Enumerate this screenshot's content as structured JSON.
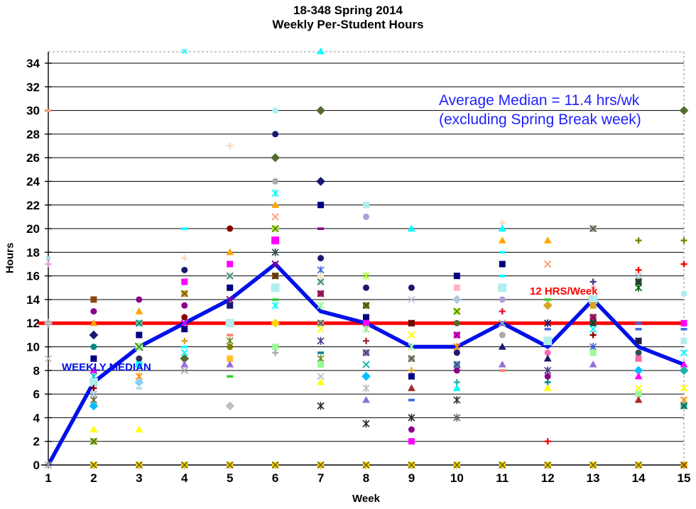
{
  "chart_data": {
    "type": "scatter",
    "title_line1": "18-348 Spring 2014",
    "title_line2": "Weekly Per-Student Hours",
    "xlabel": "Week",
    "ylabel": "Hours",
    "x_ticks": [
      1,
      2,
      3,
      4,
      5,
      6,
      7,
      8,
      9,
      10,
      11,
      12,
      13,
      14,
      15
    ],
    "y_ticks": [
      0,
      2,
      4,
      6,
      8,
      10,
      12,
      14,
      16,
      18,
      20,
      22,
      24,
      26,
      28,
      30,
      32,
      34
    ],
    "ylim": [
      0,
      35
    ],
    "grid": "horizontal-every-2-hours",
    "legend_position": "none",
    "annotations": {
      "average_line1": "Average Median = 11.4 hrs/wk",
      "average_line2": "(excluding  Spring Break week)",
      "annotation_color": "#1F1FFF"
    },
    "reference_line": {
      "label": "12 HRS/Week",
      "value": 12,
      "color": "#FF0000"
    },
    "median_series": {
      "name": "WEEKLY MEDIAN",
      "color": "#0010E8",
      "x": [
        1,
        2,
        3,
        4,
        5,
        6,
        7,
        8,
        9,
        10,
        11,
        12,
        13,
        14,
        15
      ],
      "y": [
        0,
        7,
        10,
        12,
        14,
        17,
        13,
        12,
        10,
        10,
        12,
        10,
        14,
        10,
        8.5
      ]
    },
    "student_points_note": "per-week per-student hours; each point [hours, color, marker, optional size]; markers: sq=square ci=circle di=diamond tr=triangle pl=plus x=x st=star da=dash xq=crossed-square",
    "student_points": {
      "1": [
        [
          30,
          "#FFA07A",
          "da"
        ],
        [
          17.5,
          "#ADD8E6",
          "sq",
          6
        ],
        [
          17,
          "#DDA0DD",
          "pl"
        ],
        [
          12,
          "#B8B8B8",
          "di"
        ],
        [
          9,
          "#C8C8C8",
          "x"
        ],
        [
          0,
          "#A0A0A0",
          "st"
        ]
      ],
      "2": [
        [
          14,
          "#8B4513",
          "sq"
        ],
        [
          13,
          "#8B008B",
          "ci"
        ],
        [
          12,
          "#FFA500",
          "tr"
        ],
        [
          11,
          "#191970",
          "di"
        ],
        [
          10,
          "#008B8B",
          "ci"
        ],
        [
          9,
          "#000080",
          "sq"
        ],
        [
          8,
          "#FF00FF",
          "tr"
        ],
        [
          7.5,
          "#00CED1",
          "st"
        ],
        [
          7,
          "#AFEEEE",
          "sq",
          12
        ],
        [
          6.5,
          "#8B0000",
          "pl"
        ],
        [
          6,
          "#B0C4DE",
          "x"
        ],
        [
          5.5,
          "#6B6B2F",
          "st"
        ],
        [
          5,
          "#00BFFF",
          "di"
        ],
        [
          3,
          "#FFFF00",
          "tr"
        ],
        [
          2,
          "#9ACD32",
          "xq"
        ],
        [
          0,
          "#FFD700",
          "xq"
        ]
      ],
      "3": [
        [
          14,
          "#8B008B",
          "ci"
        ],
        [
          13,
          "#FFA500",
          "tr"
        ],
        [
          12,
          "#40E0D0",
          "xq"
        ],
        [
          11,
          "#000080",
          "sq"
        ],
        [
          10,
          "#98FB98",
          "xq",
          11
        ],
        [
          9,
          "#2F2F4F",
          "ci"
        ],
        [
          8.5,
          "#00FFFF",
          "sq"
        ],
        [
          7.5,
          "#FF8C00",
          "st"
        ],
        [
          7,
          "#87CEFA",
          "di"
        ],
        [
          6.5,
          "#B0E0E6",
          "da"
        ],
        [
          3,
          "#FFFF00",
          "tr"
        ],
        [
          0,
          "#FFD700",
          "xq"
        ]
      ],
      "4": [
        [
          35,
          "#00FFFF",
          "x",
          6
        ],
        [
          20,
          "#00FFFF",
          "da"
        ],
        [
          17.5,
          "#FFDAB9",
          "pl"
        ],
        [
          16.5,
          "#191970",
          "ci"
        ],
        [
          15.5,
          "#FF00FF",
          "sq"
        ],
        [
          14.5,
          "#DAA520",
          "xq"
        ],
        [
          13.5,
          "#8B008B",
          "ci"
        ],
        [
          12.5,
          "#8B0000",
          "ci"
        ],
        [
          12,
          "#FF00FF",
          "x"
        ],
        [
          11.5,
          "#000080",
          "sq"
        ],
        [
          10.5,
          "#DAA520",
          "pl"
        ],
        [
          10,
          "#00FFFF",
          "da"
        ],
        [
          9.5,
          "#00FFFF",
          "x"
        ],
        [
          9,
          "#556B2F",
          "di"
        ],
        [
          8.5,
          "#9370DB",
          "tr"
        ],
        [
          8,
          "#A9A9A9",
          "x"
        ],
        [
          0,
          "#FFD700",
          "xq"
        ]
      ],
      "5": [
        [
          27,
          "#FFDAB9",
          "pl"
        ],
        [
          20,
          "#8B0000",
          "ci"
        ],
        [
          18,
          "#FFA500",
          "tr"
        ],
        [
          17,
          "#FF00FF",
          "sq"
        ],
        [
          16,
          "#AFEEEE",
          "xq"
        ],
        [
          15,
          "#000080",
          "sq"
        ],
        [
          14,
          "#8B008B",
          "x"
        ],
        [
          13.5,
          "#191970",
          "sq"
        ],
        [
          12,
          "#AFEEEE",
          "sq",
          12
        ],
        [
          11,
          "#FA8072",
          "da"
        ],
        [
          10.5,
          "#6B8E23",
          "st"
        ],
        [
          10,
          "#808000",
          "ci"
        ],
        [
          9,
          "#FFC125",
          "sq"
        ],
        [
          8.5,
          "#9370DB",
          "tr"
        ],
        [
          7.5,
          "#32CD32",
          "da"
        ],
        [
          5,
          "#C0C0C0",
          "di"
        ],
        [
          0,
          "#FFD700",
          "xq"
        ]
      ],
      "6": [
        [
          30,
          "#AFEEEE",
          "ci"
        ],
        [
          28,
          "#191970",
          "ci"
        ],
        [
          26,
          "#556B2F",
          "di"
        ],
        [
          24,
          "#A9A9A9",
          "ci"
        ],
        [
          23,
          "#00FFFF",
          "st"
        ],
        [
          22,
          "#FFA500",
          "tr"
        ],
        [
          21,
          "#FFA07A",
          "x"
        ],
        [
          20,
          "#ADFF2F",
          "xq"
        ],
        [
          19,
          "#FF00FF",
          "sq",
          11
        ],
        [
          18,
          "#2F4F4F",
          "st"
        ],
        [
          17,
          "#8B008B",
          "x"
        ],
        [
          16,
          "#8B4513",
          "xq"
        ],
        [
          15,
          "#AFEEEE",
          "sq",
          12
        ],
        [
          14,
          "#32CD32",
          "da"
        ],
        [
          13.5,
          "#00FFFF",
          "st"
        ],
        [
          12,
          "#FFD700",
          "di"
        ],
        [
          10,
          "#98FB98",
          "sq"
        ],
        [
          9.5,
          "#A9A9A9",
          "pl"
        ],
        [
          0,
          "#FFD700",
          "xq"
        ]
      ],
      "7": [
        [
          35,
          "#00FFFF",
          "tr"
        ],
        [
          30,
          "#556B2F",
          "di"
        ],
        [
          24,
          "#191970",
          "di"
        ],
        [
          22,
          "#000080",
          "sq"
        ],
        [
          20,
          "#8B008B",
          "da"
        ],
        [
          17.5,
          "#191970",
          "ci"
        ],
        [
          16.5,
          "#4169E1",
          "st"
        ],
        [
          16,
          "#FFDAB9",
          "pl"
        ],
        [
          15.5,
          "#AFEEEE",
          "xq"
        ],
        [
          14.5,
          "#C71585",
          "xq"
        ],
        [
          13.5,
          "#98FB98",
          "st"
        ],
        [
          12,
          "#A9A9A9",
          "xq"
        ],
        [
          11.5,
          "#FFFF00",
          "x"
        ],
        [
          10.5,
          "#483D8B",
          "st"
        ],
        [
          9.5,
          "#008B8B",
          "da"
        ],
        [
          9,
          "#6B8E23",
          "st"
        ],
        [
          8.5,
          "#98FB98",
          "sq"
        ],
        [
          7.5,
          "#B0C4DE",
          "x"
        ],
        [
          7,
          "#FFFF00",
          "tr"
        ],
        [
          5,
          "#2F2F2F",
          "st"
        ],
        [
          0,
          "#FFD700",
          "xq"
        ]
      ],
      "8": [
        [
          22,
          "#AFEEEE",
          "sq"
        ],
        [
          21,
          "#B19CD9",
          "ci"
        ],
        [
          16,
          "#ADFF2F",
          "st"
        ],
        [
          15,
          "#191970",
          "ci"
        ],
        [
          13.5,
          "#6B8E23",
          "xq"
        ],
        [
          12.5,
          "#000080",
          "sq"
        ],
        [
          12,
          "#FF00FF",
          "sq"
        ],
        [
          11.5,
          "#90EE90",
          "st"
        ],
        [
          10.5,
          "#A52A2A",
          "pl"
        ],
        [
          9.5,
          "#9370DB",
          "xq"
        ],
        [
          8.5,
          "#20B2AA",
          "x"
        ],
        [
          7.5,
          "#00BFFF",
          "di"
        ],
        [
          6.5,
          "#C0C0C0",
          "st"
        ],
        [
          5.5,
          "#9370DB",
          "tr"
        ],
        [
          3.5,
          "#2F2F2F",
          "st"
        ],
        [
          0,
          "#FFD700",
          "xq"
        ]
      ],
      "9": [
        [
          20,
          "#00FFFF",
          "tr"
        ],
        [
          15,
          "#191970",
          "ci"
        ],
        [
          14,
          "#C8C8E8",
          "x"
        ],
        [
          12,
          "#8B0000",
          "xq"
        ],
        [
          11,
          "#FFFF00",
          "x"
        ],
        [
          10,
          "#98FB98",
          "st"
        ],
        [
          9,
          "#A9A9A9",
          "xq"
        ],
        [
          8,
          "#DAA520",
          "pl"
        ],
        [
          7.5,
          "#000080",
          "sq"
        ],
        [
          6.5,
          "#A52A2A",
          "tr"
        ],
        [
          5.5,
          "#4169E1",
          "da"
        ],
        [
          4,
          "#2F2F2F",
          "st"
        ],
        [
          3,
          "#8B008B",
          "ci"
        ],
        [
          2,
          "#FF00FF",
          "sq"
        ],
        [
          0,
          "#FFD700",
          "xq"
        ]
      ],
      "10": [
        [
          16,
          "#000080",
          "sq"
        ],
        [
          15,
          "#FFB6C1",
          "sq"
        ],
        [
          14,
          "#B0C4DE",
          "di"
        ],
        [
          13,
          "#ADFF2F",
          "xq"
        ],
        [
          12,
          "#556B2F",
          "ci"
        ],
        [
          11,
          "#FF00FF",
          "xq"
        ],
        [
          10,
          "#FF8C00",
          "st"
        ],
        [
          9.5,
          "#191970",
          "ci"
        ],
        [
          8.5,
          "#6495ED",
          "xq"
        ],
        [
          8,
          "#8B008B",
          "ci"
        ],
        [
          7,
          "#20B2AA",
          "pl"
        ],
        [
          6.5,
          "#00FFFF",
          "tr"
        ],
        [
          5.5,
          "#2F2F2F",
          "st"
        ],
        [
          4,
          "#696969",
          "st"
        ],
        [
          0,
          "#FFD700",
          "xq"
        ]
      ],
      "11": [
        [
          20.5,
          "#FFDAB9",
          "pl"
        ],
        [
          20,
          "#00FFFF",
          "tr"
        ],
        [
          19,
          "#FFA500",
          "tr"
        ],
        [
          18,
          "#00FFFF",
          "da"
        ],
        [
          17,
          "#000080",
          "sq"
        ],
        [
          16,
          "#00FFFF",
          "da"
        ],
        [
          15,
          "#AFEEEE",
          "sq",
          12
        ],
        [
          14,
          "#B19CD9",
          "ci"
        ],
        [
          13,
          "#DC143C",
          "pl"
        ],
        [
          12,
          "#A9A9A9",
          "x"
        ],
        [
          11,
          "#A9A9A9",
          "ci"
        ],
        [
          10,
          "#191970",
          "tr"
        ],
        [
          8.5,
          "#9370DB",
          "tr"
        ],
        [
          8,
          "#FA8072",
          "da"
        ],
        [
          0,
          "#FFD700",
          "xq"
        ]
      ],
      "12": [
        [
          19,
          "#FFA500",
          "tr"
        ],
        [
          17,
          "#FFA07A",
          "x"
        ],
        [
          14,
          "#32CD32",
          "da"
        ],
        [
          13.5,
          "#DAA520",
          "di"
        ],
        [
          12,
          "#191970",
          "st"
        ],
        [
          11.5,
          "#4169E1",
          "da"
        ],
        [
          10.5,
          "#AFEEEE",
          "sq",
          12
        ],
        [
          9.5,
          "#FF69B4",
          "ci"
        ],
        [
          9,
          "#191970",
          "tr"
        ],
        [
          8,
          "#483D8B",
          "st"
        ],
        [
          7.5,
          "#8B008B",
          "ci"
        ],
        [
          7,
          "#008B8B",
          "pl"
        ],
        [
          6.5,
          "#FFFF00",
          "tr"
        ],
        [
          2,
          "#FF0000",
          "pl"
        ],
        [
          0,
          "#FFD700",
          "xq"
        ]
      ],
      "13": [
        [
          20,
          "#A9A9A9",
          "xq"
        ],
        [
          15.5,
          "#483D8B",
          "pl"
        ],
        [
          15,
          "#FFB6C1",
          "sq",
          6
        ],
        [
          14,
          "#AFEEEE",
          "sq",
          12
        ],
        [
          13.5,
          "#DAA520",
          "sq"
        ],
        [
          12.5,
          "#C71585",
          "xq"
        ],
        [
          12,
          "#2F4F4F",
          "xq"
        ],
        [
          11.5,
          "#00FFFF",
          "x"
        ],
        [
          11,
          "#8B0000",
          "pl"
        ],
        [
          10,
          "#4169E1",
          "st"
        ],
        [
          9.5,
          "#98FB98",
          "sq"
        ],
        [
          8.5,
          "#9370DB",
          "tr"
        ],
        [
          0,
          "#FFD700",
          "xq"
        ]
      ],
      "14": [
        [
          19,
          "#808000",
          "pl"
        ],
        [
          16.5,
          "#FF0000",
          "pl"
        ],
        [
          16,
          "#B0C4DE",
          "x"
        ],
        [
          15.5,
          "#2F4F4F",
          "xq"
        ],
        [
          15,
          "#006400",
          "st"
        ],
        [
          12,
          "#4169E1",
          "da"
        ],
        [
          11.5,
          "#4169E1",
          "da"
        ],
        [
          10.5,
          "#191970",
          "xq"
        ],
        [
          9.5,
          "#2F4F4F",
          "ci"
        ],
        [
          9,
          "#FF69B4",
          "sq"
        ],
        [
          8,
          "#00BFFF",
          "di"
        ],
        [
          7.5,
          "#FF00FF",
          "tr"
        ],
        [
          6.5,
          "#FFFF00",
          "x"
        ],
        [
          6,
          "#98FB98",
          "sq"
        ],
        [
          5.5,
          "#A52A2A",
          "tr"
        ],
        [
          0,
          "#FFD700",
          "xq"
        ]
      ],
      "15": [
        [
          30,
          "#556B2F",
          "di"
        ],
        [
          19,
          "#808000",
          "pl"
        ],
        [
          17,
          "#FF0000",
          "pl"
        ],
        [
          14.5,
          "#AFEEEE",
          "ci"
        ],
        [
          12,
          "#FF00FF",
          "sq"
        ],
        [
          11.5,
          "#4169E1",
          "da"
        ],
        [
          10.5,
          "#AFEEEE",
          "sq"
        ],
        [
          9.5,
          "#00FFFF",
          "x"
        ],
        [
          8.5,
          "#FF00FF",
          "tr"
        ],
        [
          8,
          "#20B2AA",
          "di"
        ],
        [
          6.5,
          "#FFFF00",
          "x"
        ],
        [
          5.5,
          "#FF8C00",
          "x"
        ],
        [
          5,
          "#20B2AA",
          "xq"
        ],
        [
          0,
          "#FFA500",
          "xq"
        ]
      ]
    }
  }
}
